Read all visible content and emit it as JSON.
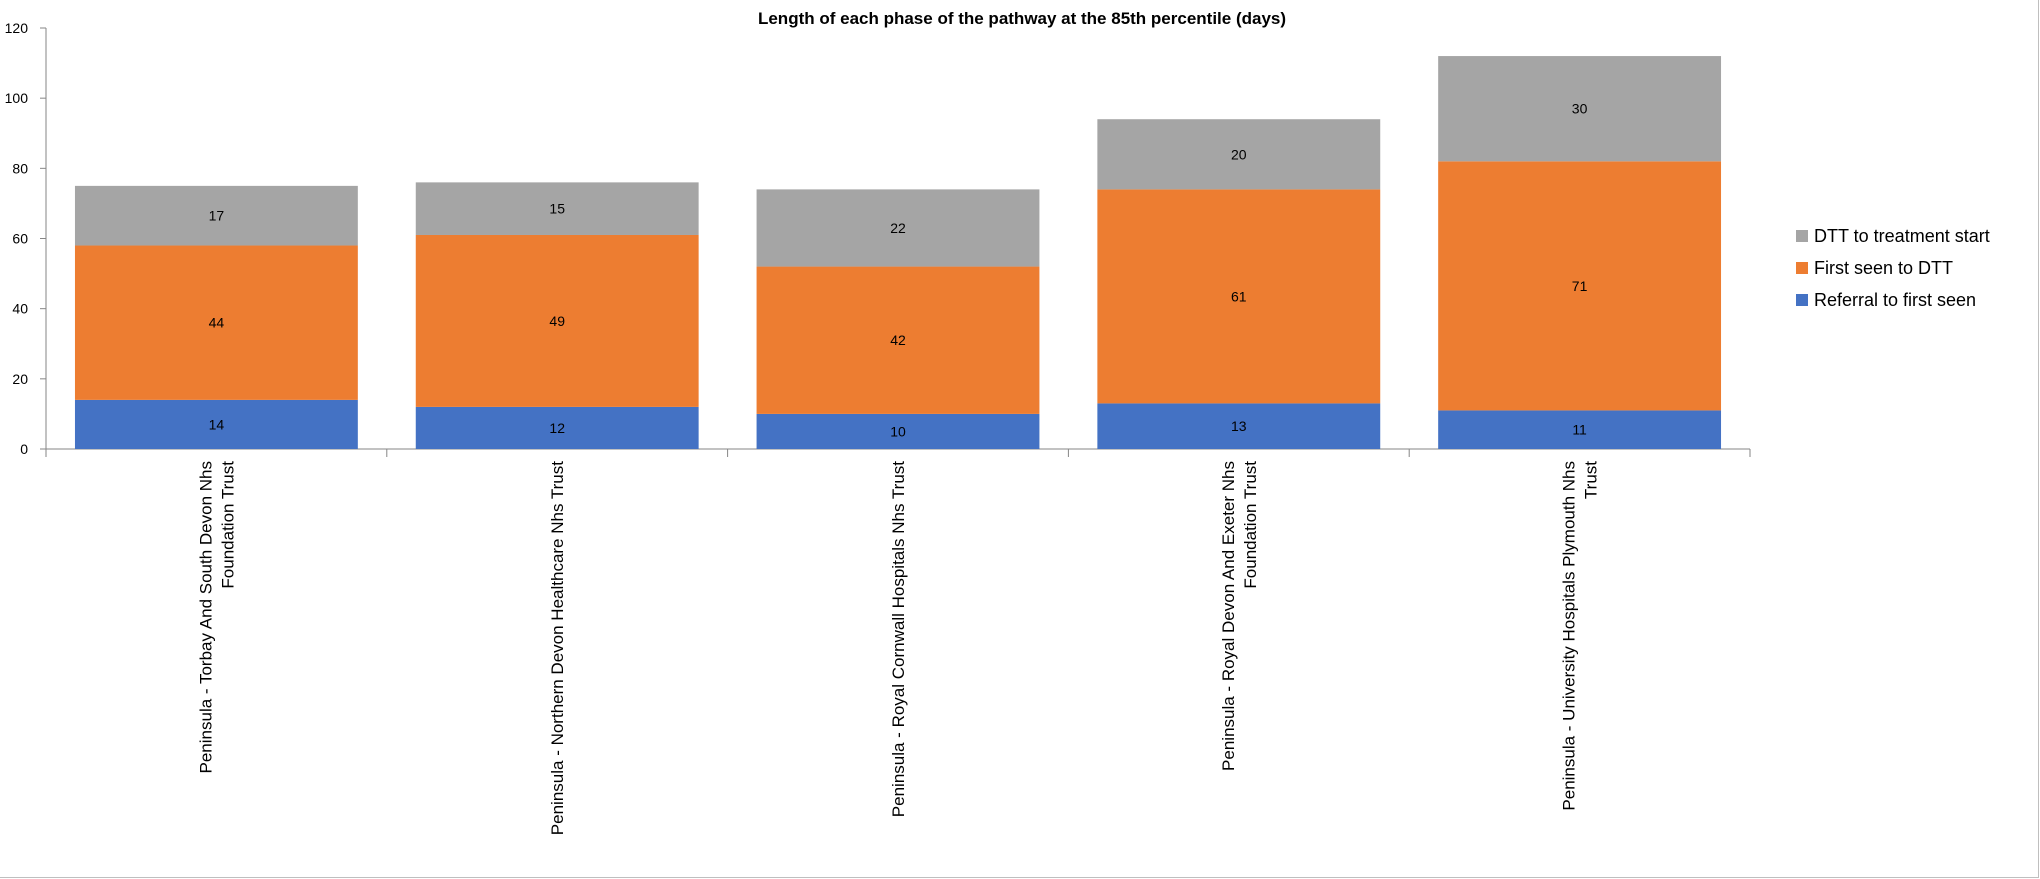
{
  "chart_data": {
    "type": "bar",
    "stacked": true,
    "title": "Length of each phase of the pathway at the 85th percentile (days)",
    "xlabel": "",
    "ylabel": "",
    "ylim": [
      0,
      120
    ],
    "yticks": [
      0,
      20,
      40,
      60,
      80,
      100,
      120
    ],
    "grid": false,
    "legend_position": "right",
    "categories": [
      [
        "Peninsula - Torbay And South Devon Nhs",
        "Foundation Trust"
      ],
      [
        "Peninsula - Northern Devon Healthcare Nhs Trust"
      ],
      [
        "Peninsula - Royal Cornwall Hospitals Nhs Trust"
      ],
      [
        "Peninsula - Royal Devon And Exeter Nhs",
        "Foundation Trust"
      ],
      [
        "Peninsula - University Hospitals Plymouth Nhs",
        "Trust"
      ]
    ],
    "series": [
      {
        "name": "Referral to first seen",
        "color": "#4472c4",
        "values": [
          14,
          12,
          10,
          13,
          11
        ]
      },
      {
        "name": "First seen to DTT",
        "color": "#ed7d31",
        "values": [
          44,
          49,
          42,
          61,
          71
        ]
      },
      {
        "name": "DTT to treatment start",
        "color": "#a5a5a5",
        "values": [
          17,
          15,
          22,
          20,
          30
        ]
      }
    ],
    "legend_order": [
      "DTT to treatment start",
      "First seen to DTT",
      "Referral to first seen"
    ]
  }
}
